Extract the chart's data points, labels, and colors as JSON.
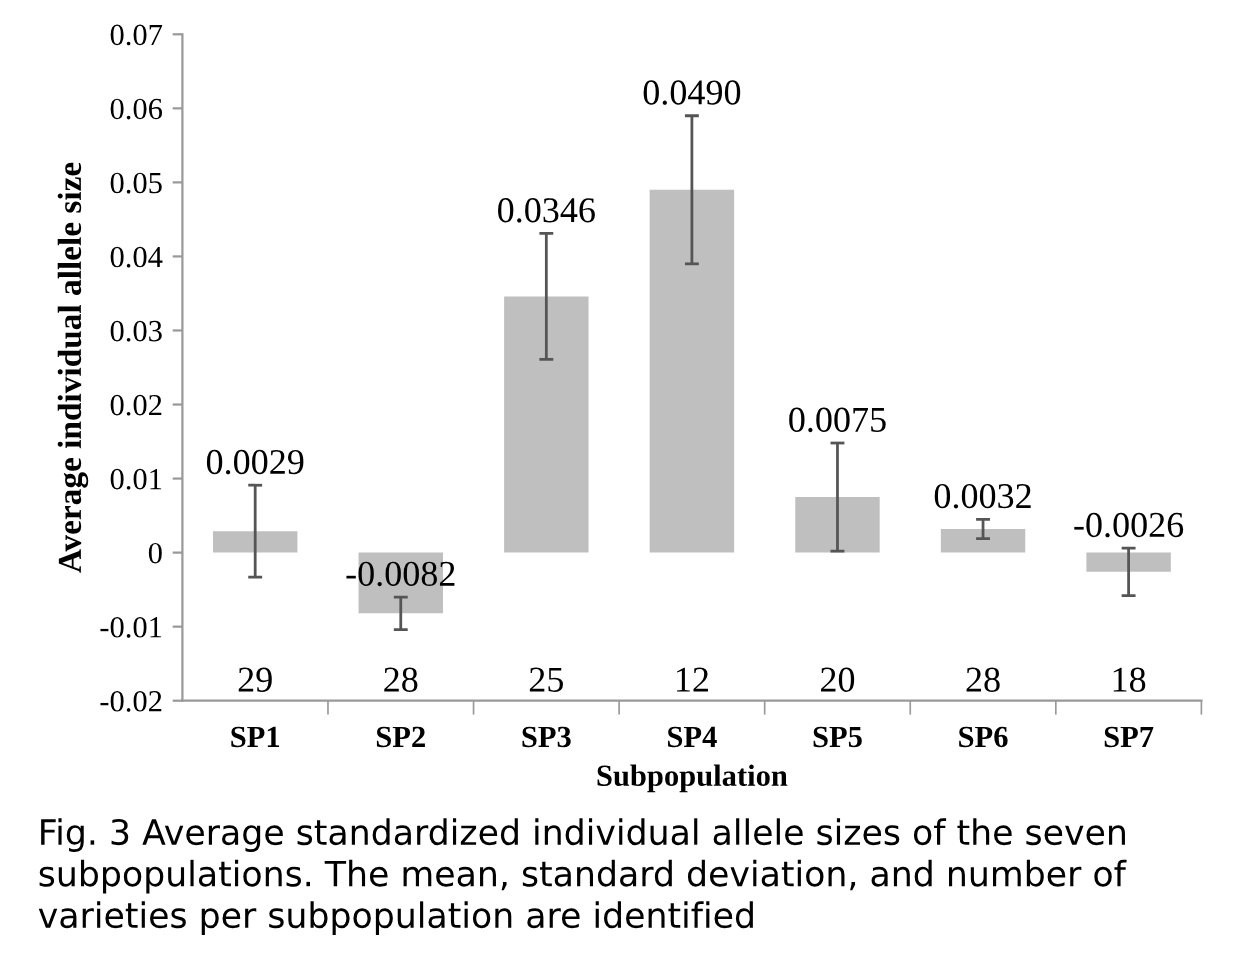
{
  "chart_data": {
    "type": "bar",
    "categories": [
      "SP1",
      "SP2",
      "SP3",
      "SP4",
      "SP5",
      "SP6",
      "SP7"
    ],
    "values": [
      0.0029,
      -0.0082,
      0.0346,
      0.049,
      0.0075,
      0.0032,
      -0.0026
    ],
    "value_labels": [
      "0.0029",
      "-0.0082",
      "0.0346",
      "0.0490",
      "0.0075",
      "0.0032",
      "-0.0026"
    ],
    "errors": [
      0.0062,
      0.0022,
      0.0085,
      0.01,
      0.0073,
      0.0013,
      0.0032
    ],
    "color": "#bfbfbf",
    "xlabel": "Subpopulation",
    "ylabel": "Average individual allele size",
    "ylim": [
      -0.02,
      0.07
    ],
    "yticks": [
      -0.02,
      -0.01,
      0,
      0.01,
      0.02,
      0.03,
      0.04,
      0.05,
      0.06,
      0.07
    ],
    "annotations": [
      "29",
      "28",
      "25",
      "12",
      "20",
      "28",
      "18",
      "Fig. 3 Average standardized individual allele sizes of the seven subpopulations. The mean, standard deviation, and number of varieties per subpopulation are identified"
    ]
  }
}
